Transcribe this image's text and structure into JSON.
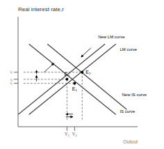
{
  "chart_data": {
    "type": "line",
    "title": "Real interest rate,r",
    "xlabel": "Output",
    "xlim": [
      -0.5,
      10.5
    ],
    "ylim": [
      -0.7,
      10.2
    ],
    "xticks": [
      {
        "value": 4.0,
        "label": "Y₁"
      },
      {
        "value": 4.7,
        "label": "Y₂"
      }
    ],
    "yticks": [
      {
        "value": 4.7,
        "label": "i₂"
      },
      {
        "value": 4.0,
        "label": "i₁"
      },
      {
        "value": 3.6,
        "label": "i₀"
      }
    ],
    "grid": false,
    "series": [
      {
        "name": "IS curve",
        "type": "line",
        "x": [
          0.5,
          8.5
        ],
        "y": [
          7.5,
          0.5
        ],
        "color": "#444444"
      },
      {
        "name": "New IS curve",
        "type": "line",
        "x": [
          2.2,
          9.5
        ],
        "y": [
          7.5,
          1.0
        ],
        "color": "#444444"
      },
      {
        "name": "LM curve",
        "type": "line",
        "x": [
          0.5,
          8.5
        ],
        "y": [
          0.5,
          7.5
        ],
        "color": "#444444"
      },
      {
        "name": "New LM curve",
        "type": "line",
        "x": [
          -0.5,
          7.5
        ],
        "y": [
          0.5,
          7.5
        ],
        "color": "#444444"
      },
      {
        "type": "line",
        "x": [
          0,
          5.4
        ],
        "y": [
          4.7,
          4.7
        ],
        "color": "#666666",
        "line_style": "dashed"
      },
      {
        "type": "line",
        "x": [
          0,
          4.0
        ],
        "y": [
          4.0,
          4.0
        ],
        "color": "#666666",
        "line_style": "dashed"
      },
      {
        "type": "line",
        "x": [
          0,
          4.7
        ],
        "y": [
          3.6,
          3.6
        ],
        "color": "#666666",
        "line_style": "dashed"
      },
      {
        "type": "line",
        "x": [
          4.0,
          4.0
        ],
        "y": [
          0,
          4.0
        ],
        "color": "#666666",
        "line_style": "dashed"
      },
      {
        "type": "line",
        "x": [
          5.4,
          5.4
        ],
        "y": [
          0,
          4.7
        ],
        "color": "#666666",
        "line_style": "dashed"
      },
      {
        "type": "scatter",
        "x": [
          4.0,
          4.7,
          5.4
        ],
        "y": [
          4.0,
          3.6,
          4.7
        ],
        "labels": [
          "E₀",
          "E₁",
          "E₂"
        ],
        "color": "#000000",
        "marker": "circle"
      }
    ],
    "annotations": [
      {
        "text": "IS curve",
        "x": 8.8,
        "y": 0.8
      },
      {
        "text": "New IS curve",
        "x": 9.0,
        "y": 2.5
      },
      {
        "text": "LM curve",
        "x": 8.8,
        "y": 7.0
      },
      {
        "text": "New LM curve",
        "x": 6.8,
        "y": 8.2
      }
    ],
    "arrows": [
      {
        "x": [
          1.9,
          2.8
        ],
        "y": [
          4.7,
          5.6
        ]
      },
      {
        "x": [
          6.2,
          5.3
        ],
        "y": [
          7.1,
          6.2
        ]
      },
      {
        "x": [
          3.9,
          4.55
        ],
        "y": [
          0.28,
          0.28
        ]
      },
      {
        "x": [
          4.55,
          3.9
        ],
        "y": [
          0.55,
          0.55
        ]
      },
      {
        "x": [
          1.2,
          1.2
        ],
        "y": [
          3.8,
          4.4
        ]
      },
      {
        "x": [
          1.2,
          1.2
        ],
        "y": [
          4.5,
          4.9
        ]
      }
    ]
  }
}
